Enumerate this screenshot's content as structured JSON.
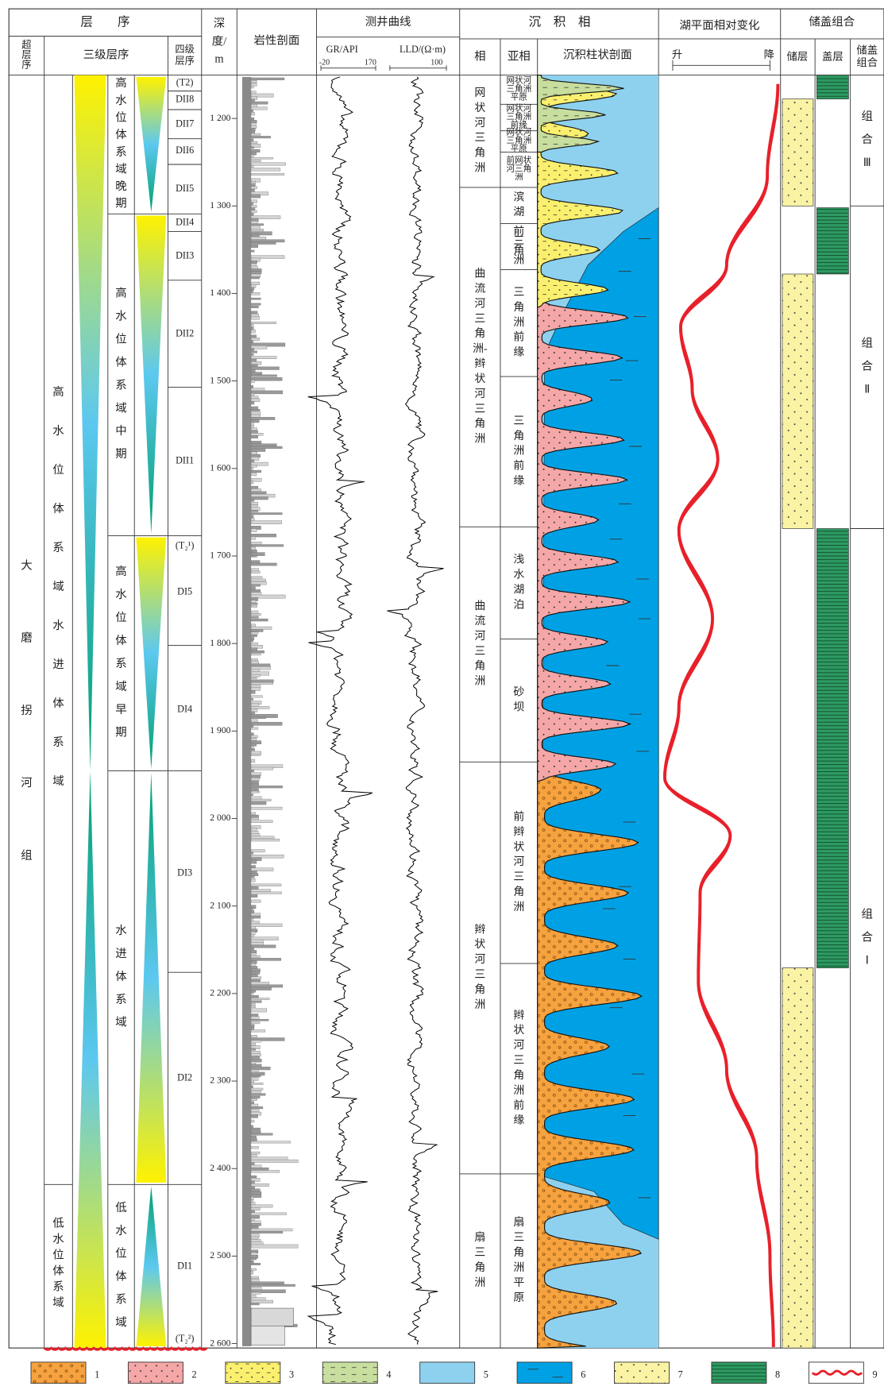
{
  "headers": {
    "sequence": "层　　序",
    "super_sequence": "超层序",
    "third_order": "三级层序",
    "fourth_order": "四级层序",
    "depth": "深度/m",
    "lithology": "岩性剖面",
    "logs": "测井曲线",
    "gr": "GR/API",
    "gr_min": -20,
    "gr_max": 170,
    "lld": "LLD/(Ω·m)",
    "lld_max": 100,
    "sedimentary_facies": "沉　积　相",
    "facies": "相",
    "subfacies": "亚相",
    "column": "沉积柱状剖面",
    "lake_level": "湖平面相对变化",
    "rise": "升",
    "fall": "降",
    "combination": "储盖组合",
    "reservoir": "储层",
    "cap": "盖层",
    "combo": "储盖组合"
  },
  "super_sequence": "大磨拐河组",
  "third_order": [
    "高水位体系域水进体系域",
    "低水位体系域"
  ],
  "system_tracts": [
    "高水位体系域晚期",
    "高水位体系域中期",
    "高水位体系域早期",
    "水进体系域",
    "低水位体系域"
  ],
  "fourth_order": [
    "(T2)",
    "DII8",
    "DII7",
    "DII6",
    "DII5",
    "DII4",
    "DII3",
    "DII2",
    "DII1",
    "(T₂¹)",
    "DI5",
    "DI4",
    "DI3",
    "DI2",
    "DI1",
    "(T₂²)"
  ],
  "depth_ticks": [
    {
      "value": 1200,
      "label": "1 200"
    },
    {
      "value": 1300,
      "label": "1 300"
    },
    {
      "value": 1400,
      "label": "1 400"
    },
    {
      "value": 1500,
      "label": "1 500"
    },
    {
      "value": 1600,
      "label": "1 600"
    },
    {
      "value": 1700,
      "label": "1 700"
    },
    {
      "value": 1800,
      "label": "1 800"
    },
    {
      "value": 1900,
      "label": "1 900"
    },
    {
      "value": 2000,
      "label": "2 000"
    },
    {
      "value": 2100,
      "label": "2 100"
    },
    {
      "value": 2200,
      "label": "2 200"
    },
    {
      "value": 2300,
      "label": "2 300"
    },
    {
      "value": 2400,
      "label": "2 400"
    },
    {
      "value": 2500,
      "label": "2 500"
    },
    {
      "value": 2600,
      "label": "2 600"
    }
  ],
  "facies": [
    "网状河三角洲",
    "曲流河三角洲-辫状河三角洲",
    "曲流河三角洲",
    "辫状河三角洲",
    "扇三角洲"
  ],
  "subfacies": [
    "网状河三角洲平原",
    "网状河三角洲前缘",
    "网状河三角洲平原",
    "前网状河三角洲",
    "滨湖",
    "前三角洲",
    "三角洲前缘",
    "三角洲前缘",
    "浅水湖泊",
    "砂坝",
    "前辫状河三角洲",
    "辫状河三角洲前缘",
    "扇三角洲平原"
  ],
  "combinations": [
    "组合Ⅲ",
    "组合Ⅱ",
    "组合Ⅰ"
  ],
  "legend": [
    1,
    2,
    3,
    4,
    5,
    6,
    7,
    8,
    9
  ]
}
